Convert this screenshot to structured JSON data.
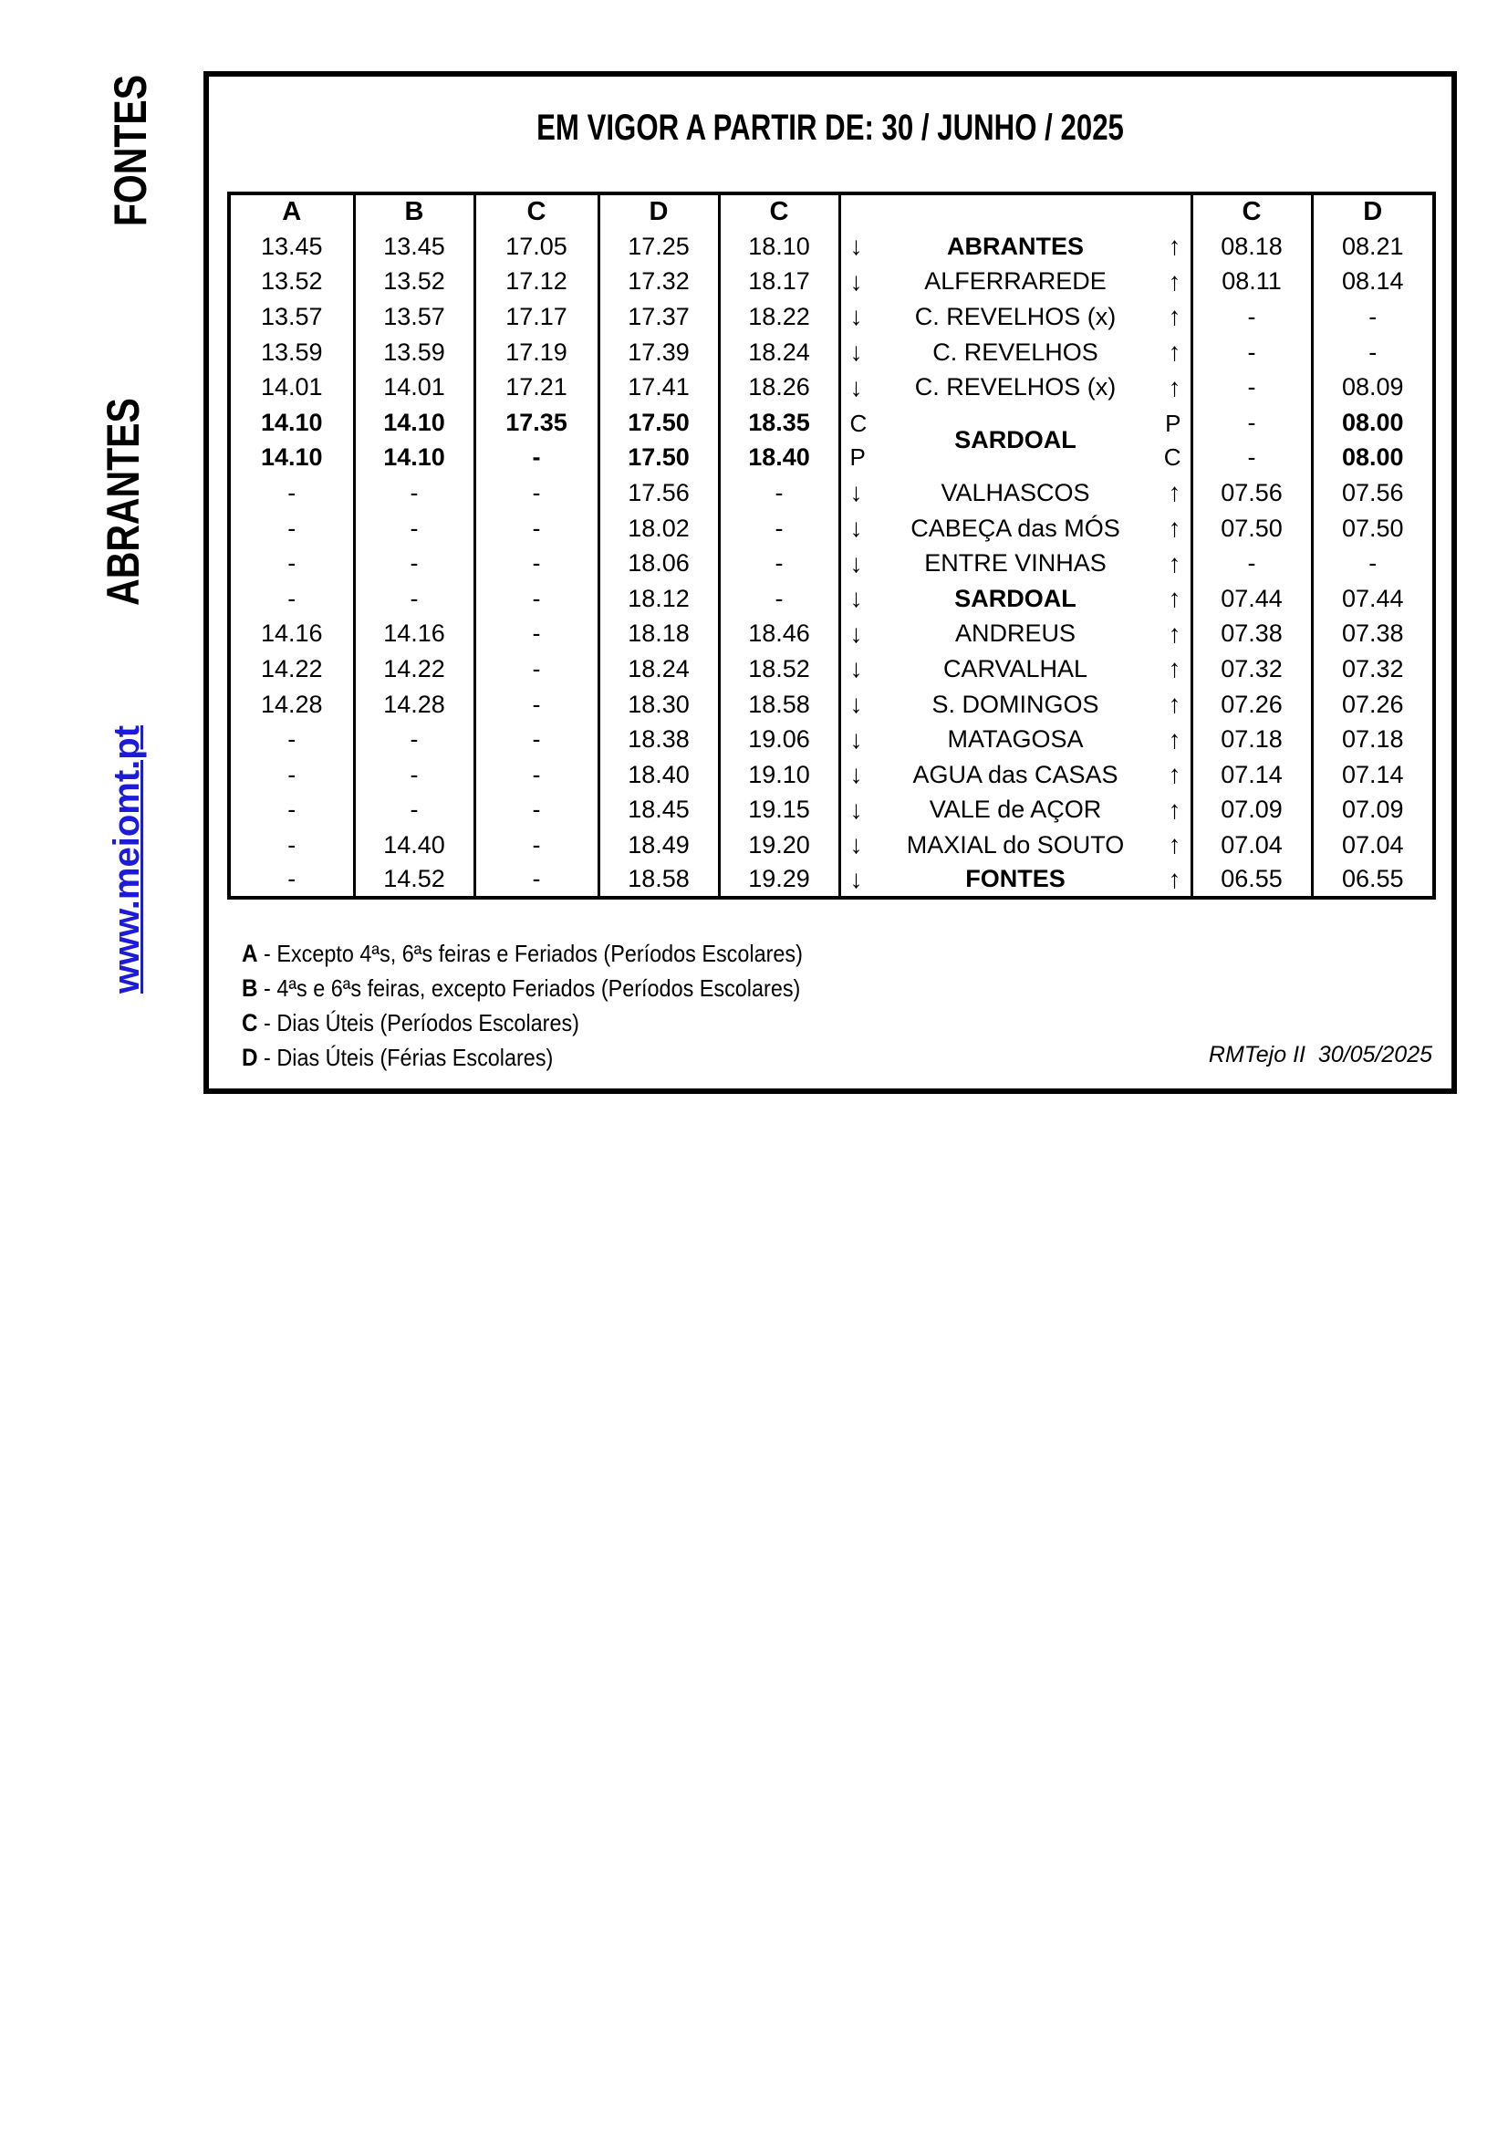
{
  "title": "EM VIGOR A PARTIR DE: 30 / JUNHO / 2025",
  "sidebar": {
    "top_label": "FONTES",
    "middle_label": "ABRANTES",
    "website": "www.meiomt.pt"
  },
  "colors": {
    "link_blue": "#1b1bd9",
    "text": "#000000"
  },
  "timetable": {
    "headers": [
      "A",
      "B",
      "C",
      "D",
      "C",
      "",
      "C",
      "D"
    ],
    "down_arrow": "↓",
    "up_arrow": "↑",
    "rows": [
      {
        "times": [
          "13.45",
          "13.45",
          "17.05",
          "17.25",
          "18.10"
        ],
        "bold": false,
        "lm": "↓",
        "station": "ABRANTES",
        "sb": true,
        "rm": "↑",
        "right": [
          "08.18",
          "08.21"
        ]
      },
      {
        "times": [
          "13.52",
          "13.52",
          "17.12",
          "17.32",
          "18.17"
        ],
        "bold": false,
        "lm": "↓",
        "station": "ALFERRAREDE",
        "sb": false,
        "rm": "↑",
        "right": [
          "08.11",
          "08.14"
        ]
      },
      {
        "times": [
          "13.57",
          "13.57",
          "17.17",
          "17.37",
          "18.22"
        ],
        "bold": false,
        "lm": "↓",
        "station": "C. REVELHOS (x)",
        "sb": false,
        "rm": "↑",
        "right": [
          "-",
          "-"
        ]
      },
      {
        "times": [
          "13.59",
          "13.59",
          "17.19",
          "17.39",
          "18.24"
        ],
        "bold": false,
        "lm": "↓",
        "station": "C. REVELHOS",
        "sb": false,
        "rm": "↑",
        "right": [
          "-",
          "-"
        ]
      },
      {
        "times": [
          "14.01",
          "14.01",
          "17.21",
          "17.41",
          "18.26"
        ],
        "bold": false,
        "lm": "↓",
        "station": "C. REVELHOS (x)",
        "sb": false,
        "rm": "↑",
        "right": [
          "-",
          "08.09"
        ]
      },
      {
        "times": [
          "14.10",
          "14.10",
          "17.35",
          "17.50",
          "18.35"
        ],
        "bold": true,
        "station_merged": {
          "name": "SARDOAL",
          "sb": true,
          "left_markers": [
            "C",
            "P"
          ],
          "right_markers": [
            "P",
            "C"
          ],
          "span": 2
        },
        "right": [
          "-",
          "08.00"
        ]
      },
      {
        "times": [
          "14.10",
          "14.10",
          "-",
          "17.50",
          "18.40"
        ],
        "bold": true,
        "no_station": true,
        "right": [
          "-",
          "08.00"
        ]
      },
      {
        "times": [
          "-",
          "-",
          "-",
          "17.56",
          "-"
        ],
        "bold": false,
        "lm": "↓",
        "station": "VALHASCOS",
        "sb": false,
        "rm": "↑",
        "right": [
          "07.56",
          "07.56"
        ]
      },
      {
        "times": [
          "-",
          "-",
          "-",
          "18.02",
          "-"
        ],
        "bold": false,
        "lm": "↓",
        "station": "CABEÇA das MÓS",
        "sb": false,
        "rm": "↑",
        "right": [
          "07.50",
          "07.50"
        ]
      },
      {
        "times": [
          "-",
          "-",
          "-",
          "18.06",
          "-"
        ],
        "bold": false,
        "lm": "↓",
        "station": "ENTRE VINHAS",
        "sb": false,
        "rm": "↑",
        "right": [
          "-",
          "-"
        ]
      },
      {
        "times": [
          "-",
          "-",
          "-",
          "18.12",
          "-"
        ],
        "bold": false,
        "lm": "↓",
        "station": "SARDOAL",
        "sb": true,
        "rm": "↑",
        "right": [
          "07.44",
          "07.44"
        ]
      },
      {
        "times": [
          "14.16",
          "14.16",
          "-",
          "18.18",
          "18.46"
        ],
        "bold": false,
        "lm": "↓",
        "station": "ANDREUS",
        "sb": false,
        "rm": "↑",
        "right": [
          "07.38",
          "07.38"
        ]
      },
      {
        "times": [
          "14.22",
          "14.22",
          "-",
          "18.24",
          "18.52"
        ],
        "bold": false,
        "lm": "↓",
        "station": "CARVALHAL",
        "sb": false,
        "rm": "↑",
        "right": [
          "07.32",
          "07.32"
        ]
      },
      {
        "times": [
          "14.28",
          "14.28",
          "-",
          "18.30",
          "18.58"
        ],
        "bold": false,
        "lm": "↓",
        "station": "S. DOMINGOS",
        "sb": false,
        "rm": "↑",
        "right": [
          "07.26",
          "07.26"
        ]
      },
      {
        "times": [
          "-",
          "-",
          "-",
          "18.38",
          "19.06"
        ],
        "bold": false,
        "lm": "↓",
        "station": "MATAGOSA",
        "sb": false,
        "rm": "↑",
        "right": [
          "07.18",
          "07.18"
        ]
      },
      {
        "times": [
          "-",
          "-",
          "-",
          "18.40",
          "19.10"
        ],
        "bold": false,
        "lm": "↓",
        "station": "AGUA das CASAS",
        "sb": false,
        "rm": "↑",
        "right": [
          "07.14",
          "07.14"
        ]
      },
      {
        "times": [
          "-",
          "-",
          "-",
          "18.45",
          "19.15"
        ],
        "bold": false,
        "lm": "↓",
        "station": "VALE de AÇOR",
        "sb": false,
        "rm": "↑",
        "right": [
          "07.09",
          "07.09"
        ]
      },
      {
        "times": [
          "-",
          "14.40",
          "-",
          "18.49",
          "19.20"
        ],
        "bold": false,
        "lm": "↓",
        "station": "MAXIAL do SOUTO",
        "sb": false,
        "rm": "↑",
        "right": [
          "07.04",
          "07.04"
        ]
      },
      {
        "times": [
          "-",
          "14.52",
          "-",
          "18.58",
          "19.29"
        ],
        "bold": false,
        "lm": "↓",
        "station": "FONTES",
        "sb": true,
        "rm": "↑",
        "right": [
          "06.55",
          "06.55"
        ]
      }
    ]
  },
  "legend": [
    {
      "key": "A",
      "text": "- Excepto 4ªs,  6ªs feiras e Feriados (Períodos Escolares)"
    },
    {
      "key": "B",
      "text": "- 4ªs e 6ªs feiras, excepto Feriados (Períodos Escolares)"
    },
    {
      "key": "C",
      "text": "- Dias Úteis (Períodos Escolares)"
    },
    {
      "key": "D",
      "text": "- Dias Úteis (Férias Escolares)"
    }
  ],
  "footer": {
    "issuer": "RMTejo II",
    "date": "30/05/2025"
  }
}
